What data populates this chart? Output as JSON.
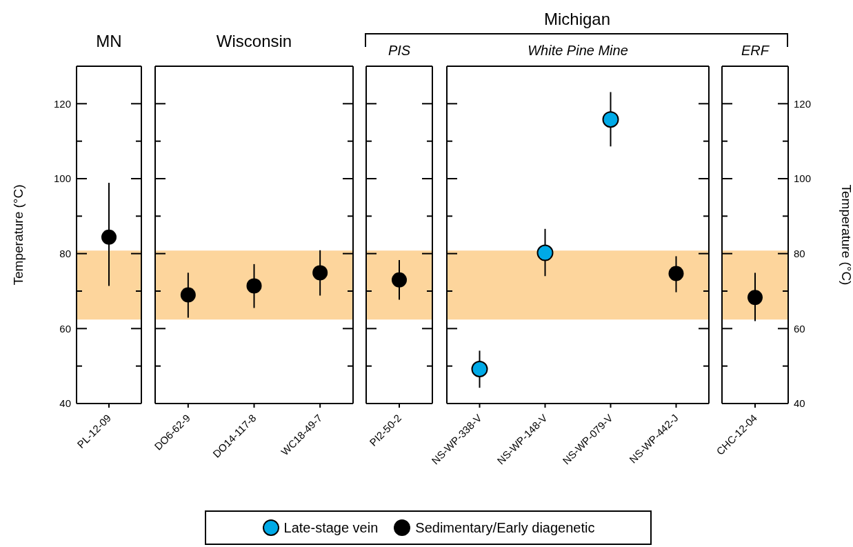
{
  "chart_data": [
    {
      "type": "scatter",
      "title": "MN",
      "ylabel": "Temperature (°C)",
      "categories": [
        "PL-12-09"
      ],
      "marker": "circle",
      "series": [
        {
          "color": "#000000",
          "values": [
            84.4
          ],
          "errors": [
            [
              71.4,
              98.9
            ]
          ]
        }
      ],
      "ylim": [
        40,
        130
      ],
      "yticks": [
        40,
        {
          "value": 50,
          "label": null
        },
        60,
        {
          "value": 70,
          "label": null
        },
        80,
        {
          "value": 90,
          "label": null
        },
        100,
        {
          "value": 110,
          "label": null
        },
        120
      ],
      "bands": [
        {
          "axis": "y",
          "from": 62.4,
          "to": 80.8,
          "color": "#fdd59c"
        }
      ]
    },
    {
      "type": "scatter",
      "title": "Wisconsin",
      "categories": [
        "DO6-62-9",
        "DO14-117-8",
        "WC18-49-7"
      ],
      "marker": "circle",
      "tick_labels": "x",
      "series": [
        {
          "color": "#000000",
          "values": [
            69.0,
            71.4,
            74.9
          ],
          "errors": [
            [
              62.9,
              74.9
            ],
            [
              65.5,
              77.2
            ],
            [
              68.8,
              80.9
            ]
          ]
        }
      ],
      "ylim": [
        40,
        130
      ],
      "yticks": [
        40,
        {
          "value": 50,
          "label": null
        },
        60,
        {
          "value": 70,
          "label": null
        },
        80,
        {
          "value": 90,
          "label": null
        },
        100,
        {
          "value": 110,
          "label": null
        },
        120
      ],
      "bands": [
        {
          "axis": "y",
          "from": 62.4,
          "to": 80.8,
          "color": "#fdd59c"
        }
      ]
    },
    {
      "type": "scatter",
      "subtitle": "PIS",
      "categories": [
        "PI2-50-2"
      ],
      "marker": "circle",
      "tick_labels": "x",
      "series": [
        {
          "color": "#000000",
          "values": [
            73.0
          ],
          "errors": [
            [
              67.7,
              78.3
            ]
          ]
        }
      ],
      "ylim": [
        40,
        130
      ],
      "yticks": [
        40,
        {
          "value": 50,
          "label": null
        },
        60,
        {
          "value": 70,
          "label": null
        },
        80,
        {
          "value": 90,
          "label": null
        },
        100,
        {
          "value": 110,
          "label": null
        },
        120
      ],
      "bands": [
        {
          "axis": "y",
          "from": 62.4,
          "to": 80.8,
          "color": "#fdd59c"
        }
      ]
    },
    {
      "type": "scatter",
      "title": "Michigan",
      "subtitle": "White Pine Mine",
      "categories": [
        "NS-WP-338-V",
        "NS-WP-148-V",
        "NS-WP-079-V",
        "NS-WP-442-J"
      ],
      "marker": "circle",
      "tick_labels": "x",
      "legend": "bottom",
      "series": [
        {
          "name": "Late-stage vein",
          "color": "#00aae7",
          "values": [
            49.2,
            80.2,
            115.8,
            null
          ],
          "errors": [
            [
              44.2,
              54.1
            ],
            [
              74.0,
              86.6
            ],
            [
              108.6,
              123.1
            ],
            null
          ]
        },
        {
          "name": "Sedimentary/Early diagenetic",
          "color": "#000000",
          "values": [
            null,
            null,
            null,
            74.7
          ],
          "errors": [
            null,
            null,
            null,
            [
              69.7,
              79.3
            ]
          ]
        }
      ],
      "ylim": [
        40,
        130
      ],
      "yticks": [
        40,
        {
          "value": 50,
          "label": null
        },
        60,
        {
          "value": 70,
          "label": null
        },
        80,
        {
          "value": 90,
          "label": null
        },
        100,
        {
          "value": 110,
          "label": null
        },
        120
      ],
      "bands": [
        {
          "axis": "y",
          "from": 62.4,
          "to": 80.8,
          "color": "#fdd59c"
        }
      ]
    },
    {
      "type": "scatter",
      "subtitle": "ERF",
      "y2label": "Temperature (°C)",
      "categories": [
        "CHC-12-04"
      ],
      "marker": "circle",
      "series": [
        {
          "color": "#000000",
          "values": [
            68.3
          ],
          "errors": [
            [
              62.0,
              74.9
            ]
          ],
          "axis": "y2"
        }
      ],
      "y2lim": [
        40,
        130
      ],
      "y2ticks": [
        40,
        {
          "value": 50,
          "label": null
        },
        60,
        {
          "value": 70,
          "label": null
        },
        80,
        {
          "value": 90,
          "label": null
        },
        100,
        {
          "value": 110,
          "label": null
        },
        120
      ],
      "bands": [
        {
          "axis": "y2",
          "from": 62.4,
          "to": 80.8,
          "color": "#fdd59c"
        }
      ]
    }
  ]
}
